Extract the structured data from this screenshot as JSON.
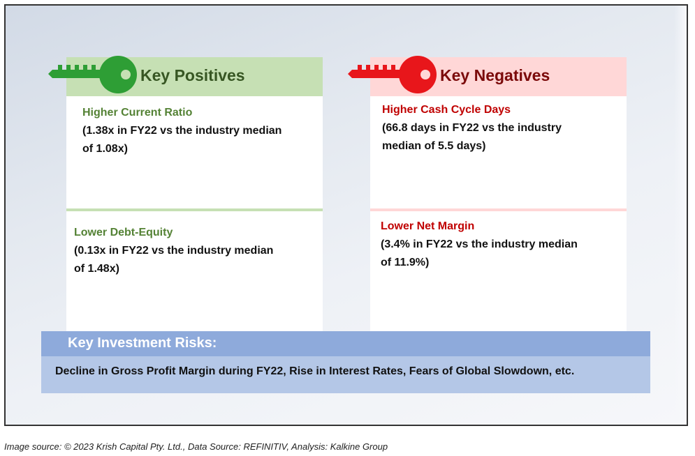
{
  "positives": {
    "title": "Key Positives",
    "icon": "key-icon",
    "header_color": "#c6e0b4",
    "title_color": "#375623",
    "key_color": "#2e9e35",
    "item_color": "#548235",
    "items": [
      {
        "title": "Higher Current Ratio",
        "desc_line1": "(1.38x in FY22 vs the industry median",
        "desc_line2": "of 1.08x)"
      },
      {
        "title": "Lower Debt-Equity",
        "desc_line1": "(0.13x in FY22 vs the industry median",
        "desc_line2": "of 1.48x)"
      }
    ]
  },
  "negatives": {
    "title": "Key Negatives",
    "icon": "key-icon",
    "header_color": "#ffd7d7",
    "title_color": "#7b0a0a",
    "key_color": "#e8161b",
    "item_color": "#c00000",
    "items": [
      {
        "title": "Higher Cash Cycle Days",
        "desc_line1": "(66.8 days in FY22 vs the industry",
        "desc_line2": "median of 5.5 days)"
      },
      {
        "title": "Lower Net Margin",
        "desc_line1": "(3.4% in FY22 vs the industry median",
        "desc_line2": "of 11.9%)"
      }
    ]
  },
  "risks": {
    "heading": "Key Investment Risks:",
    "text": "Decline in Gross Profit Margin during FY22, Rise in Interest Rates, Fears of Global Slowdown, etc."
  },
  "footer": {
    "source": "Image source: © 2023 Krish Capital Pty. Ltd., Data Source: REFINITIV, Analysis: Kalkine Group"
  }
}
